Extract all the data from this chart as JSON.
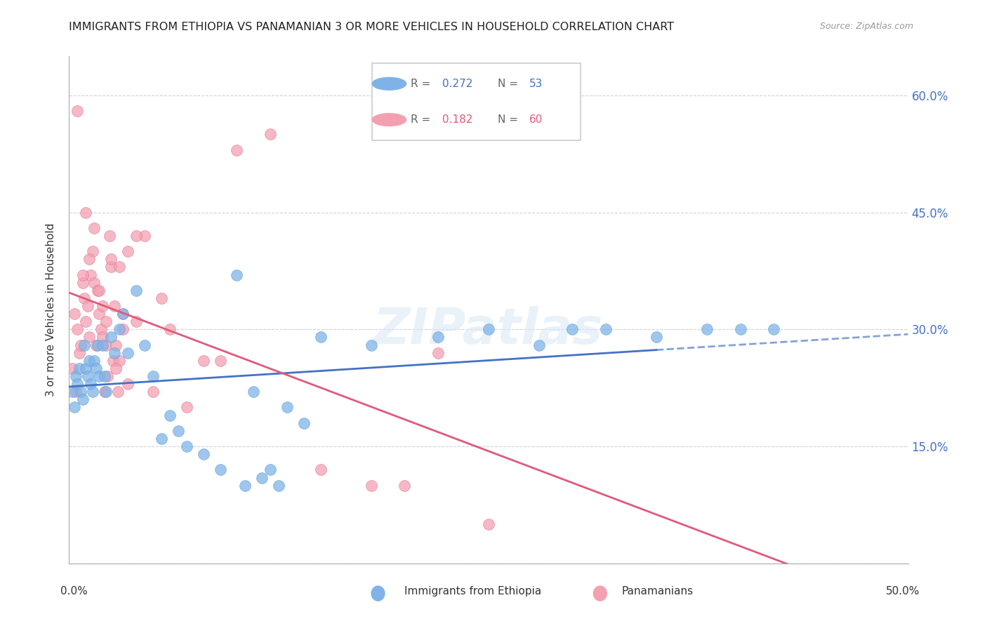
{
  "title": "IMMIGRANTS FROM ETHIOPIA VS PANAMANIAN 3 OR MORE VEHICLES IN HOUSEHOLD CORRELATION CHART",
  "source": "Source: ZipAtlas.com",
  "ylabel": "3 or more Vehicles in Household",
  "xlim": [
    0,
    50
  ],
  "ylim": [
    0,
    65
  ],
  "blue_r": "0.272",
  "blue_n": "53",
  "pink_r": "0.182",
  "pink_n": "60",
  "blue_color": "#7fb3e8",
  "pink_color": "#f4a0b0",
  "blue_line_color": "#4472C4",
  "pink_line_color": "#E05A7A",
  "watermark": "ZIPatlas",
  "right_ytick_labels": [
    "15.0%",
    "30.0%",
    "45.0%",
    "60.0%"
  ],
  "right_ytick_values": [
    15,
    30,
    45,
    60
  ],
  "blue_x": [
    0.2,
    0.3,
    0.4,
    0.5,
    0.6,
    0.7,
    0.8,
    0.9,
    1.0,
    1.1,
    1.2,
    1.3,
    1.4,
    1.5,
    1.6,
    1.7,
    1.8,
    2.0,
    2.1,
    2.2,
    2.5,
    2.7,
    3.0,
    3.2,
    3.5,
    4.0,
    4.5,
    5.0,
    5.5,
    6.0,
    6.5,
    7.0,
    8.0,
    9.0,
    10.0,
    11.0,
    12.0,
    13.0,
    14.0,
    15.0,
    18.0,
    22.0,
    25.0,
    28.0,
    30.0,
    32.0,
    35.0,
    38.0,
    40.0,
    42.0,
    10.5,
    11.5,
    12.5
  ],
  "blue_y": [
    22,
    20,
    24,
    23,
    25,
    22,
    21,
    28,
    25,
    24,
    26,
    23,
    22,
    26,
    25,
    28,
    24,
    28,
    24,
    22,
    29,
    27,
    30,
    32,
    27,
    35,
    28,
    24,
    16,
    19,
    17,
    15,
    14,
    12,
    37,
    22,
    12,
    20,
    18,
    29,
    28,
    29,
    30,
    28,
    30,
    30,
    29,
    30,
    30,
    30,
    10,
    11,
    10
  ],
  "pink_x": [
    0.2,
    0.3,
    0.4,
    0.5,
    0.6,
    0.7,
    0.8,
    0.9,
    1.0,
    1.1,
    1.2,
    1.3,
    1.4,
    1.5,
    1.6,
    1.7,
    1.8,
    1.9,
    2.0,
    2.1,
    2.2,
    2.3,
    2.4,
    2.5,
    2.6,
    2.7,
    2.8,
    2.9,
    3.0,
    3.2,
    3.5,
    4.0,
    4.5,
    5.0,
    5.5,
    6.0,
    7.0,
    8.0,
    9.0,
    10.0,
    12.0,
    15.0,
    18.0,
    20.0,
    22.0,
    25.0,
    0.5,
    1.0,
    1.5,
    2.0,
    2.5,
    3.0,
    3.5,
    4.0,
    0.8,
    1.2,
    1.8,
    2.2,
    2.8,
    3.2
  ],
  "pink_y": [
    25,
    32,
    22,
    30,
    27,
    28,
    36,
    34,
    31,
    33,
    29,
    37,
    40,
    36,
    28,
    35,
    32,
    30,
    29,
    22,
    28,
    24,
    42,
    38,
    26,
    33,
    28,
    22,
    26,
    30,
    23,
    31,
    42,
    22,
    34,
    30,
    20,
    26,
    26,
    53,
    55,
    12,
    10,
    10,
    27,
    5,
    58,
    45,
    43,
    33,
    39,
    38,
    40,
    42,
    37,
    39,
    35,
    31,
    25,
    32
  ]
}
